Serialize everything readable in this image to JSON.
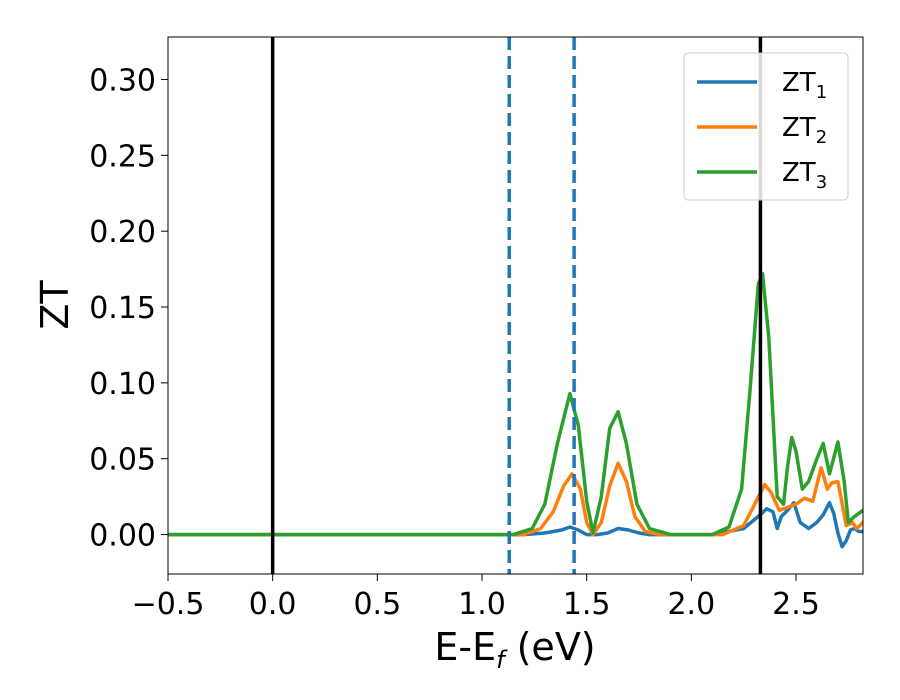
{
  "chart_data": {
    "type": "line",
    "xlabel": "E-E",
    "xlabel_subscript": "f",
    "xlabel_unit": " (eV)",
    "ylabel": "ZT",
    "xlim": [
      -0.5,
      2.82
    ],
    "ylim": [
      -0.026,
      0.328
    ],
    "xticks": [
      -0.5,
      0.0,
      0.5,
      1.0,
      1.5,
      2.0,
      2.5
    ],
    "xtick_labels": [
      "−0.5",
      "0.0",
      "0.5",
      "1.0",
      "1.5",
      "2.0",
      "2.5"
    ],
    "yticks": [
      0.0,
      0.05,
      0.1,
      0.15,
      0.2,
      0.25,
      0.3
    ],
    "ytick_labels": [
      "0.00",
      "0.05",
      "0.10",
      "0.15",
      "0.20",
      "0.25",
      "0.30"
    ],
    "legend": {
      "placement": "top-right"
    },
    "vlines": [
      {
        "x": 0.0,
        "style": "solid",
        "color": "#000000"
      },
      {
        "x": 2.33,
        "style": "solid",
        "color": "#000000"
      },
      {
        "x": 1.13,
        "style": "dashed",
        "color": "#1f77b4"
      },
      {
        "x": 1.44,
        "style": "dashed",
        "color": "#1f77b4"
      }
    ],
    "series": [
      {
        "name": "ZT",
        "subscript": "1",
        "color": "#1f77b4",
        "points": [
          [
            -0.5,
            0.0
          ],
          [
            1.2,
            0.0
          ],
          [
            1.3,
            0.001
          ],
          [
            1.38,
            0.003
          ],
          [
            1.42,
            0.005
          ],
          [
            1.46,
            0.003
          ],
          [
            1.5,
            0.0
          ],
          [
            1.55,
            0.0
          ],
          [
            1.6,
            0.001
          ],
          [
            1.65,
            0.004
          ],
          [
            1.7,
            0.003
          ],
          [
            1.75,
            0.001
          ],
          [
            1.8,
            0.0
          ],
          [
            2.1,
            0.0
          ],
          [
            2.25,
            0.004
          ],
          [
            2.32,
            0.012
          ],
          [
            2.36,
            0.017
          ],
          [
            2.39,
            0.015
          ],
          [
            2.41,
            0.004
          ],
          [
            2.43,
            0.012
          ],
          [
            2.46,
            0.016
          ],
          [
            2.49,
            0.021
          ],
          [
            2.52,
            0.008
          ],
          [
            2.56,
            0.004
          ],
          [
            2.6,
            0.008
          ],
          [
            2.63,
            0.013
          ],
          [
            2.66,
            0.021
          ],
          [
            2.68,
            0.014
          ],
          [
            2.7,
            0.001
          ],
          [
            2.72,
            -0.008
          ],
          [
            2.74,
            -0.004
          ],
          [
            2.76,
            0.003
          ],
          [
            2.78,
            0.004
          ],
          [
            2.8,
            0.002
          ],
          [
            2.82,
            0.002
          ]
        ]
      },
      {
        "name": "ZT",
        "subscript": "2",
        "color": "#ff7f0e",
        "points": [
          [
            -0.5,
            0.0
          ],
          [
            1.2,
            0.0
          ],
          [
            1.28,
            0.004
          ],
          [
            1.34,
            0.015
          ],
          [
            1.39,
            0.032
          ],
          [
            1.43,
            0.04
          ],
          [
            1.47,
            0.03
          ],
          [
            1.5,
            0.008
          ],
          [
            1.53,
            0.0
          ],
          [
            1.57,
            0.008
          ],
          [
            1.61,
            0.032
          ],
          [
            1.65,
            0.047
          ],
          [
            1.69,
            0.035
          ],
          [
            1.73,
            0.012
          ],
          [
            1.78,
            0.002
          ],
          [
            1.85,
            0.0
          ],
          [
            2.15,
            0.0
          ],
          [
            2.25,
            0.006
          ],
          [
            2.31,
            0.022
          ],
          [
            2.35,
            0.033
          ],
          [
            2.38,
            0.028
          ],
          [
            2.42,
            0.016
          ],
          [
            2.46,
            0.018
          ],
          [
            2.5,
            0.02
          ],
          [
            2.54,
            0.024
          ],
          [
            2.58,
            0.022
          ],
          [
            2.62,
            0.044
          ],
          [
            2.65,
            0.03
          ],
          [
            2.67,
            0.034
          ],
          [
            2.7,
            0.035
          ],
          [
            2.74,
            0.006
          ],
          [
            2.77,
            0.008
          ],
          [
            2.79,
            0.004
          ],
          [
            2.82,
            0.008
          ]
        ]
      },
      {
        "name": "ZT",
        "subscript": "3",
        "color": "#2ca02c",
        "points": [
          [
            -0.5,
            0.0
          ],
          [
            1.15,
            0.0
          ],
          [
            1.24,
            0.004
          ],
          [
            1.3,
            0.02
          ],
          [
            1.36,
            0.06
          ],
          [
            1.42,
            0.093
          ],
          [
            1.46,
            0.072
          ],
          [
            1.5,
            0.022
          ],
          [
            1.53,
            0.001
          ],
          [
            1.57,
            0.025
          ],
          [
            1.61,
            0.07
          ],
          [
            1.65,
            0.081
          ],
          [
            1.69,
            0.06
          ],
          [
            1.74,
            0.02
          ],
          [
            1.8,
            0.004
          ],
          [
            1.9,
            0.0
          ],
          [
            2.1,
            0.0
          ],
          [
            2.18,
            0.005
          ],
          [
            2.24,
            0.03
          ],
          [
            2.28,
            0.095
          ],
          [
            2.32,
            0.165
          ],
          [
            2.34,
            0.172
          ],
          [
            2.37,
            0.13
          ],
          [
            2.41,
            0.025
          ],
          [
            2.44,
            0.02
          ],
          [
            2.46,
            0.045
          ],
          [
            2.48,
            0.064
          ],
          [
            2.5,
            0.055
          ],
          [
            2.53,
            0.03
          ],
          [
            2.56,
            0.035
          ],
          [
            2.6,
            0.05
          ],
          [
            2.63,
            0.06
          ],
          [
            2.66,
            0.04
          ],
          [
            2.7,
            0.061
          ],
          [
            2.73,
            0.035
          ],
          [
            2.75,
            0.008
          ],
          [
            2.78,
            0.012
          ],
          [
            2.82,
            0.016
          ]
        ]
      }
    ]
  }
}
